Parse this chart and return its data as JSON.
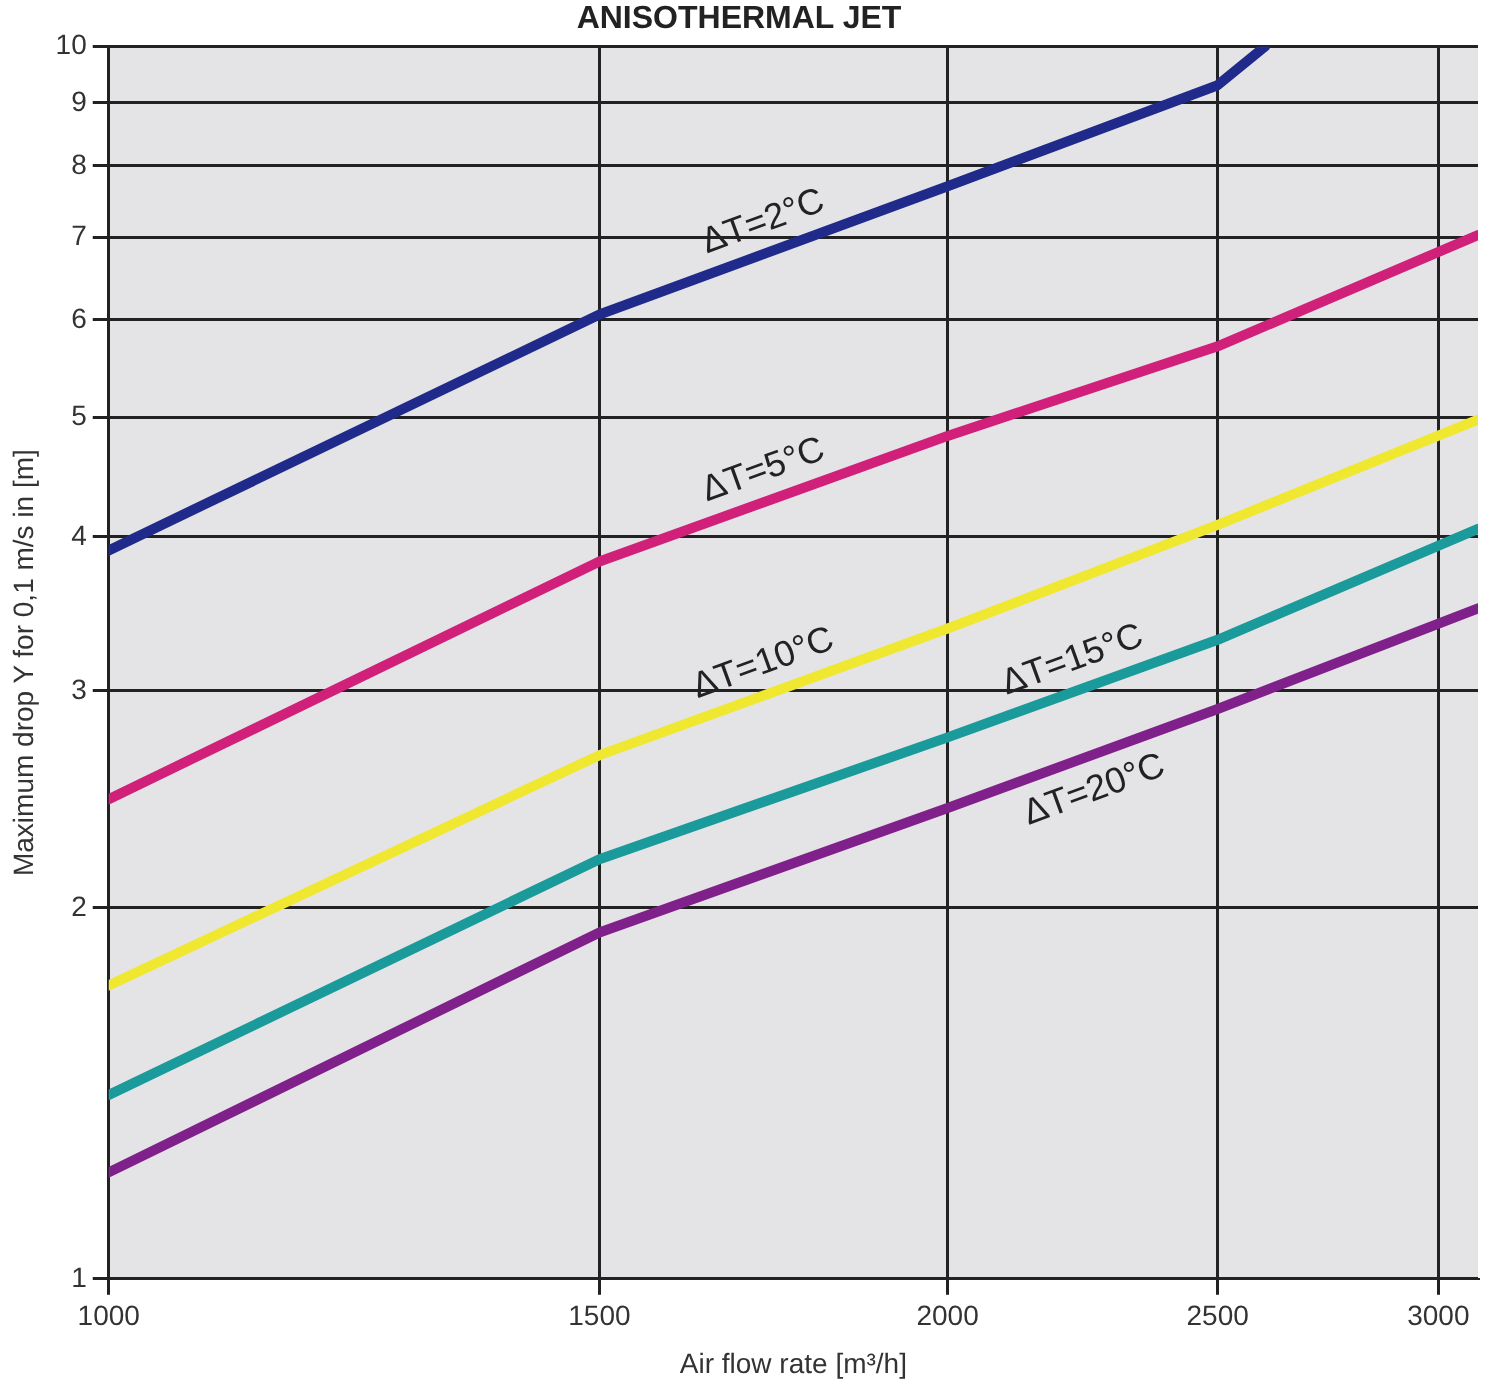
{
  "chart_data": {
    "type": "line",
    "title": "ANISOTHERMAL JET",
    "xlabel": "Air flow rate [m³/h]",
    "ylabel": "Maximum drop Y for 0,1 m/s in [m]",
    "log": "xy",
    "grid": true,
    "legend": false,
    "marker": "none",
    "line_style": "solid",
    "xlim": [
      1000,
      3100
    ],
    "xticks": [
      1000,
      1500,
      2000,
      2500,
      3000
    ],
    "ylim": [
      1,
      10
    ],
    "yticks": [
      1,
      2,
      3,
      4,
      5,
      6,
      7,
      8,
      9,
      10
    ],
    "series": [
      {
        "name": "ΔT=2°C",
        "color": "#1f2a8a",
        "x": [
          1000,
          1500,
          2000,
          2500,
          2600
        ],
        "values": [
          3.9,
          6.06,
          7.7,
          9.3,
          10
        ]
      },
      {
        "name": "ΔT=5°C",
        "color": "#d0207a",
        "x": [
          1000,
          1500,
          2000,
          2500,
          3100
        ],
        "values": [
          2.45,
          3.82,
          4.83,
          5.71,
          7.03
        ]
      },
      {
        "name": "ΔT=10°C",
        "color": "#f0e830",
        "x": [
          1000,
          1500,
          2000,
          2500,
          3100
        ],
        "values": [
          1.73,
          2.66,
          3.37,
          4.09,
          4.98
        ]
      },
      {
        "name": "ΔT=15°C",
        "color": "#1a9a9a",
        "x": [
          1000,
          1500,
          2000,
          2500,
          3100
        ],
        "values": [
          1.41,
          2.19,
          2.75,
          3.3,
          4.06
        ]
      },
      {
        "name": "ΔT=20°C",
        "color": "#80208a",
        "x": [
          1000,
          1500,
          2000,
          2500,
          3100
        ],
        "values": [
          1.22,
          1.91,
          2.41,
          2.9,
          3.5
        ]
      }
    ]
  }
}
